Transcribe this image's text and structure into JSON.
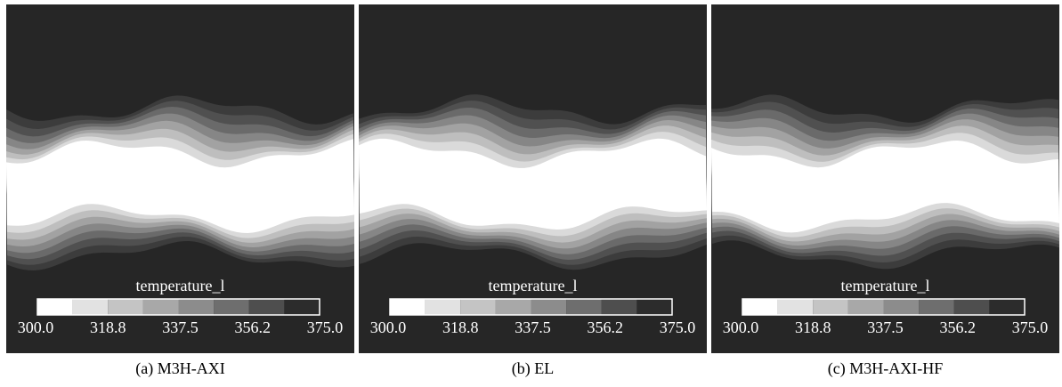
{
  "panels": [
    {
      "caption": "(a)  M3H-AXI",
      "colorbar": {
        "title": "temperature_l",
        "ticks": [
          "300.0",
          "318.8",
          "337.5",
          "356.2",
          "375.0"
        ]
      }
    },
    {
      "caption": "(b)  EL",
      "colorbar": {
        "title": "temperature_l",
        "ticks": [
          "300.0",
          "318.8",
          "337.5",
          "356.2",
          "375.0"
        ]
      }
    },
    {
      "caption": "(c)  M3H-AXI-HF",
      "colorbar": {
        "title": "temperature_l",
        "ticks": [
          "300.0",
          "318.8",
          "337.5",
          "356.2",
          "375.0"
        ]
      }
    }
  ]
}
